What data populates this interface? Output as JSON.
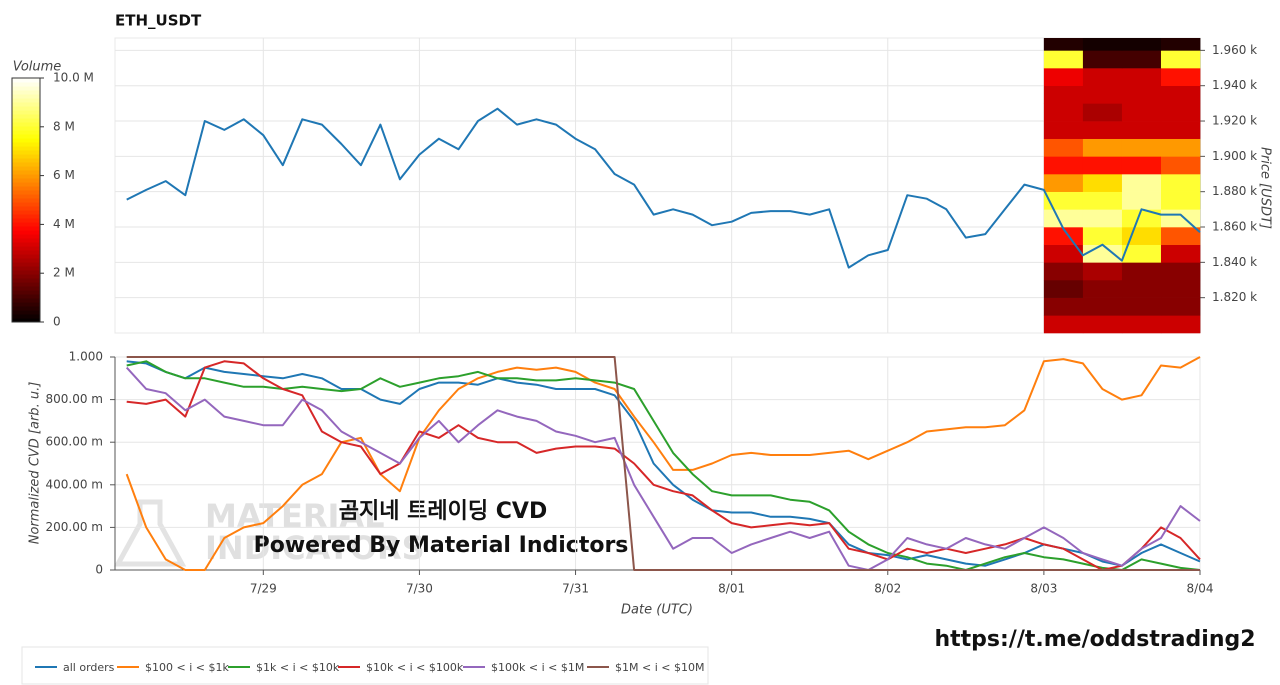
{
  "chart_data": [
    {
      "type": "line",
      "title": "ETH_USDT",
      "y_label": "Price [USDT]",
      "color": "#1f77b4",
      "grid": true,
      "xlim": [
        0.05,
        7
      ],
      "xticks": [
        1,
        2,
        3,
        4,
        5,
        6
      ],
      "ylim": [
        1800,
        1967
      ],
      "yticks": [
        {
          "value": 1820,
          "label": "1.820 k"
        },
        {
          "value": 1840,
          "label": "1.840 k"
        },
        {
          "value": 1860,
          "label": "1.860 k"
        },
        {
          "value": 1880,
          "label": "1.880 k"
        },
        {
          "value": 1900,
          "label": "1.900 k"
        },
        {
          "value": 1920,
          "label": "1.920 k"
        },
        {
          "value": 1940,
          "label": "1.940 k"
        },
        {
          "value": 1960,
          "label": "1.960 k"
        }
      ],
      "x": [
        0.125,
        0.25,
        0.375,
        0.5,
        0.625,
        0.75,
        0.875,
        1,
        1.125,
        1.25,
        1.375,
        1.5,
        1.625,
        1.75,
        1.875,
        2,
        2.125,
        2.25,
        2.375,
        2.5,
        2.625,
        2.75,
        2.875,
        3,
        3.125,
        3.25,
        3.375,
        3.5,
        3.625,
        3.75,
        3.875,
        4,
        4.125,
        4.25,
        4.375,
        4.5,
        4.625,
        4.75,
        4.875,
        5,
        5.125,
        5.25,
        5.375,
        5.5,
        5.625,
        5.75,
        5.875,
        6,
        6.125,
        6.25,
        6.375,
        6.5,
        6.625,
        6.75,
        6.875,
        7
      ],
      "values": [
        1875.5,
        1881,
        1886,
        1878,
        1920,
        1915,
        1921,
        1912,
        1895,
        1921,
        1918,
        1907,
        1895,
        1918,
        1887,
        1901,
        1910,
        1904,
        1920,
        1927,
        1918,
        1921,
        1918,
        1910,
        1904,
        1890,
        1884,
        1867,
        1870,
        1867,
        1861,
        1863,
        1868,
        1869,
        1869,
        1867,
        1870,
        1837,
        1844,
        1847,
        1878,
        1876,
        1870,
        1854,
        1856,
        1870,
        1884,
        1881,
        1859,
        1844,
        1850,
        1841,
        1870,
        1867,
        1867,
        1857
      ]
    },
    {
      "type": "line",
      "y_label": "Normalized CVD [arb. u.]",
      "x_label": "Date (UTC)",
      "grid": true,
      "xlim": [
        0.05,
        7
      ],
      "xticks": [
        {
          "value": 1,
          "label": "7/29"
        },
        {
          "value": 2,
          "label": "7/30"
        },
        {
          "value": 3,
          "label": "7/31"
        },
        {
          "value": 4,
          "label": "8/01"
        },
        {
          "value": 5,
          "label": "8/02"
        },
        {
          "value": 6,
          "label": "8/03"
        },
        {
          "value": 7,
          "label": "8/04"
        }
      ],
      "ylim": [
        0,
        1
      ],
      "yticks": [
        0,
        {
          "value": 0.2,
          "label": "200.00 m"
        },
        {
          "value": 0.4,
          "label": "400.00 m"
        },
        {
          "value": 0.6,
          "label": "600.00 m"
        },
        {
          "value": 0.8,
          "label": "800.00 m"
        },
        {
          "value": 1,
          "label": "1.000"
        }
      ],
      "annotations": [
        "곰지네 트레이딩 CVD",
        "Powered By Material Indictors"
      ],
      "x": [
        0.125,
        0.25,
        0.375,
        0.5,
        0.625,
        0.75,
        0.875,
        1,
        1.125,
        1.25,
        1.375,
        1.5,
        1.625,
        1.75,
        1.875,
        2,
        2.125,
        2.25,
        2.375,
        2.5,
        2.625,
        2.75,
        2.875,
        3,
        3.125,
        3.25,
        3.375,
        3.5,
        3.625,
        3.75,
        3.875,
        4,
        4.125,
        4.25,
        4.375,
        4.5,
        4.625,
        4.75,
        4.875,
        5,
        5.125,
        5.25,
        5.375,
        5.5,
        5.625,
        5.75,
        5.875,
        6,
        6.125,
        6.25,
        6.375,
        6.5,
        6.625,
        6.75,
        6.875,
        7
      ],
      "series": [
        {
          "name": "all orders",
          "color": "#1f77b4",
          "values": [
            0.98,
            0.97,
            0.93,
            0.9,
            0.95,
            0.93,
            0.92,
            0.91,
            0.9,
            0.92,
            0.9,
            0.85,
            0.85,
            0.8,
            0.78,
            0.85,
            0.88,
            0.88,
            0.87,
            0.9,
            0.88,
            0.87,
            0.85,
            0.85,
            0.85,
            0.82,
            0.7,
            0.5,
            0.4,
            0.33,
            0.28,
            0.27,
            0.27,
            0.25,
            0.25,
            0.24,
            0.22,
            0.12,
            0.08,
            0.07,
            0.05,
            0.07,
            0.05,
            0.03,
            0.02,
            0.05,
            0.08,
            0.12,
            0.1,
            0.08,
            0.04,
            0.02,
            0.08,
            0.12,
            0.08,
            0.04
          ]
        },
        {
          "name": "$100 < i < $1k",
          "color": "#ff7f0e",
          "values": [
            0.45,
            0.2,
            0.05,
            0,
            0,
            0.15,
            0.2,
            0.22,
            0.3,
            0.4,
            0.45,
            0.6,
            0.62,
            0.45,
            0.37,
            0.62,
            0.75,
            0.85,
            0.9,
            0.93,
            0.95,
            0.94,
            0.95,
            0.93,
            0.88,
            0.85,
            0.72,
            0.6,
            0.47,
            0.47,
            0.5,
            0.54,
            0.55,
            0.54,
            0.54,
            0.54,
            0.55,
            0.56,
            0.52,
            0.56,
            0.6,
            0.65,
            0.66,
            0.67,
            0.67,
            0.68,
            0.75,
            0.98,
            0.99,
            0.97,
            0.85,
            0.8,
            0.82,
            0.96,
            0.95,
            1
          ]
        },
        {
          "name": "$1k < i < $10k",
          "color": "#2ca02c",
          "values": [
            0.96,
            0.98,
            0.93,
            0.9,
            0.9,
            0.88,
            0.86,
            0.86,
            0.85,
            0.86,
            0.85,
            0.84,
            0.85,
            0.9,
            0.86,
            0.88,
            0.9,
            0.91,
            0.93,
            0.9,
            0.9,
            0.89,
            0.89,
            0.9,
            0.89,
            0.88,
            0.85,
            0.7,
            0.55,
            0.45,
            0.37,
            0.35,
            0.35,
            0.35,
            0.33,
            0.32,
            0.28,
            0.18,
            0.12,
            0.08,
            0.06,
            0.03,
            0.02,
            0,
            0.03,
            0.06,
            0.08,
            0.06,
            0.05,
            0.03,
            0.01,
            0,
            0.05,
            0.03,
            0.01,
            0
          ]
        },
        {
          "name": "$10k < i < $100k",
          "color": "#d62728",
          "values": [
            0.79,
            0.78,
            0.8,
            0.72,
            0.95,
            0.98,
            0.97,
            0.9,
            0.85,
            0.82,
            0.65,
            0.6,
            0.58,
            0.45,
            0.5,
            0.65,
            0.62,
            0.68,
            0.62,
            0.6,
            0.6,
            0.55,
            0.57,
            0.58,
            0.58,
            0.57,
            0.5,
            0.4,
            0.37,
            0.35,
            0.28,
            0.22,
            0.2,
            0.21,
            0.22,
            0.21,
            0.22,
            0.1,
            0.08,
            0.05,
            0.1,
            0.08,
            0.1,
            0.08,
            0.1,
            0.12,
            0.15,
            0.12,
            0.1,
            0.05,
            0,
            0.02,
            0.1,
            0.2,
            0.15,
            0.05
          ]
        },
        {
          "name": "$100k < i < $1M",
          "color": "#9467bd",
          "values": [
            0.95,
            0.85,
            0.83,
            0.75,
            0.8,
            0.72,
            0.7,
            0.68,
            0.68,
            0.8,
            0.75,
            0.65,
            0.6,
            0.55,
            0.5,
            0.62,
            0.7,
            0.6,
            0.68,
            0.75,
            0.72,
            0.7,
            0.65,
            0.63,
            0.6,
            0.62,
            0.4,
            0.25,
            0.1,
            0.15,
            0.15,
            0.08,
            0.12,
            0.15,
            0.18,
            0.15,
            0.18,
            0.02,
            0,
            0.05,
            0.15,
            0.12,
            0.1,
            0.15,
            0.12,
            0.1,
            0.15,
            0.2,
            0.15,
            0.08,
            0.05,
            0.02,
            0.1,
            0.15,
            0.3,
            0.23
          ]
        },
        {
          "name": "$1M < i < $10M",
          "color": "#8c564b",
          "values": [
            1,
            1,
            1,
            1,
            1,
            1,
            1,
            1,
            1,
            1,
            1,
            1,
            1,
            1,
            1,
            1,
            1,
            1,
            1,
            1,
            1,
            1,
            1,
            1,
            1,
            1,
            0,
            0,
            0,
            0,
            0,
            0,
            0,
            0,
            0,
            0,
            0,
            0,
            0,
            0,
            0,
            0,
            0,
            0,
            0,
            0,
            0,
            0,
            0,
            0,
            0,
            0,
            0,
            0,
            0,
            0
          ]
        }
      ]
    },
    {
      "type": "heatmap",
      "colorbar_label": "Volume",
      "clim": [
        0,
        10
      ],
      "cticks": [
        0,
        {
          "value": 2,
          "label": "2 M"
        },
        {
          "value": 4,
          "label": "4 M"
        },
        {
          "value": 6,
          "label": "6 M"
        },
        {
          "value": 8,
          "label": "8 M"
        },
        {
          "value": 10,
          "label": "10.0 M"
        }
      ],
      "xbins": [
        6,
        6.25,
        6.5,
        6.75,
        7
      ],
      "ybins": [
        1800,
        1810,
        1820,
        1830,
        1840,
        1850,
        1860,
        1870,
        1880,
        1890,
        1900,
        1910,
        1920,
        1930,
        1940,
        1950,
        1960,
        1967
      ],
      "values": [
        [
          3,
          3,
          3,
          3
        ],
        [
          2,
          2,
          2,
          2
        ],
        [
          1.5,
          2,
          2,
          2
        ],
        [
          2,
          2.5,
          2,
          2
        ],
        [
          3,
          9,
          8,
          3
        ],
        [
          4,
          8,
          7,
          5
        ],
        [
          9,
          9,
          8,
          9
        ],
        [
          8,
          8,
          9,
          8
        ],
        [
          6,
          7,
          9,
          8
        ],
        [
          4,
          4,
          4,
          5
        ],
        [
          5,
          6,
          6,
          6
        ],
        [
          3,
          3,
          3,
          3
        ],
        [
          3,
          2.5,
          3,
          3
        ],
        [
          3,
          3,
          3,
          3
        ],
        [
          3.5,
          3,
          3,
          4
        ],
        [
          8,
          1,
          1,
          8
        ],
        [
          0.5,
          0.3,
          0.3,
          0.5
        ]
      ]
    }
  ],
  "watermark": [
    "MATERIAL",
    "INDICATORS"
  ],
  "credit": "https://t.me/oddstrading2"
}
